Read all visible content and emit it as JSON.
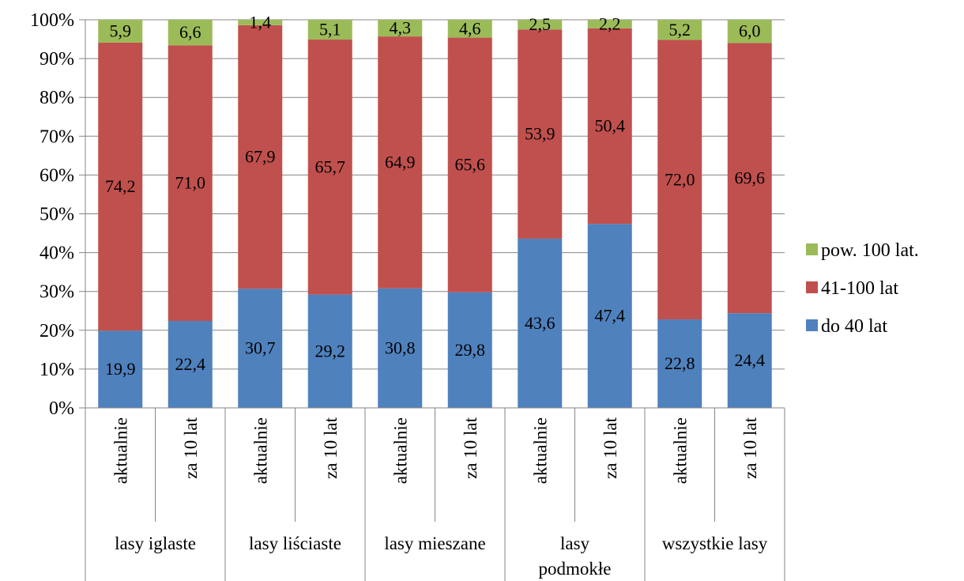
{
  "chart_data": {
    "type": "bar",
    "stacked": true,
    "percent_stacked": true,
    "groups": [
      "lasy iglaste",
      "lasy liściaste",
      "lasy mieszane",
      "lasy podmokłe",
      "wszystkie lasy"
    ],
    "categories": [
      "aktualnie",
      "za 10 lat",
      "aktualnie",
      "za 10 lat",
      "aktualnie",
      "za 10 lat",
      "aktualnie",
      "za 10 lat",
      "aktualnie",
      "za 10 lat"
    ],
    "series": [
      {
        "name": "do 40 lat",
        "color": "#4F81BD",
        "values": [
          19.9,
          22.4,
          30.7,
          29.2,
          30.8,
          29.8,
          43.6,
          47.4,
          22.8,
          24.4
        ],
        "labels": [
          "19,9",
          "22,4",
          "30,7",
          "29,2",
          "30,8",
          "29,8",
          "43,6",
          "47,4",
          "22,8",
          "24,4"
        ]
      },
      {
        "name": "41-100 lat",
        "color": "#C0504D",
        "values": [
          74.2,
          71.0,
          67.9,
          65.7,
          64.9,
          65.6,
          53.9,
          50.4,
          72.0,
          69.6
        ],
        "labels": [
          "74,2",
          "71,0",
          "67,9",
          "65,7",
          "64,9",
          "65,6",
          "53,9",
          "50,4",
          "72,0",
          "69,6"
        ]
      },
      {
        "name": "pow. 100 lat.",
        "color": "#9BBB59",
        "values": [
          5.9,
          6.6,
          1.4,
          5.1,
          4.3,
          4.6,
          2.5,
          2.2,
          5.2,
          6.0
        ],
        "labels": [
          "5,9",
          "6,6",
          "1,4",
          "5,1",
          "4,3",
          "4,6",
          "2,5",
          "2,2",
          "5,2",
          "6,0"
        ]
      }
    ],
    "y_ticks": [
      "0%",
      "10%",
      "20%",
      "30%",
      "40%",
      "50%",
      "60%",
      "70%",
      "80%",
      "90%",
      "100%"
    ],
    "ylim": [
      0,
      100
    ],
    "legend_order": [
      "pow. 100 lat.",
      "41-100 lat",
      "do 40 lat"
    ],
    "legend_position": "right",
    "grid": true
  }
}
